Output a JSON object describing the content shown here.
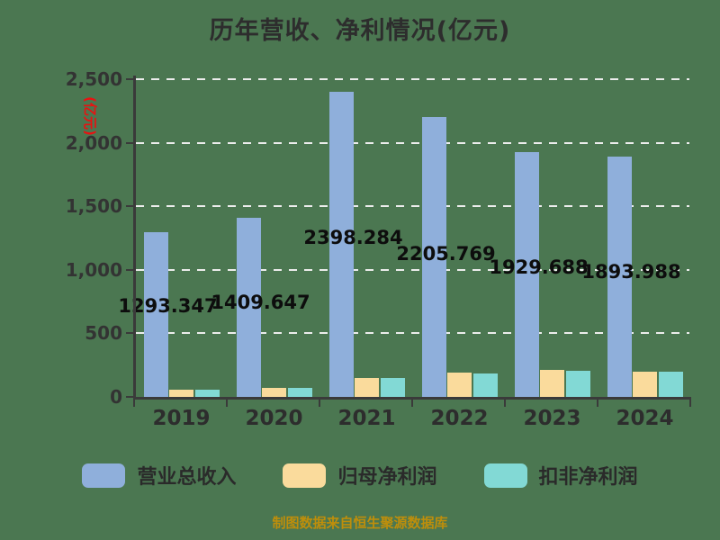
{
  "title": "历年营收、净利情况(亿元)",
  "y_axis": {
    "unit_label": "(亿元)"
  },
  "footer": {
    "source_note": "制图数据来自恒生聚源数据库"
  },
  "colors": {
    "background": "#4B7751",
    "revenue_bar": "#8FAFDB",
    "net_profit_bar": "#FADB9C",
    "deducted_profit_bar": "#82D9D5",
    "gridline": "#ECECEC",
    "axis": "#3a3a3a",
    "unit_label": "#e81212",
    "source_note": "#BE8E0B",
    "value_label": "#0d0d0d"
  },
  "chart_data": {
    "type": "bar",
    "title": "历年营收、净利情况(亿元)",
    "unit": "亿元",
    "categories": [
      "2019",
      "2020",
      "2021",
      "2022",
      "2023",
      "2024"
    ],
    "series": [
      {
        "name": "营业总收入",
        "color": "#8FAFDB",
        "values": [
          1293.347,
          1409.647,
          2398.284,
          2205.769,
          1929.688,
          1893.988
        ]
      },
      {
        "name": "归母净利润",
        "color": "#FADB9C",
        "values": [
          58,
          72,
          152,
          190,
          210,
          200
        ]
      },
      {
        "name": "扣非净利润",
        "color": "#82D9D5",
        "values": [
          56,
          68,
          148,
          185,
          205,
          195
        ]
      }
    ],
    "value_labels": [
      "1293.347",
      "1409.647",
      "2398.284",
      "2205.769",
      "1929.688",
      "1893.988"
    ],
    "y_ticks": [
      "2,500",
      "2,000",
      "1,500",
      "1,000",
      "500",
      "0"
    ],
    "y_tick_values": [
      2500,
      2000,
      1500,
      1000,
      500,
      0
    ],
    "ylim": [
      0,
      2500
    ],
    "grid": "horizontal dashed",
    "legend_position": "bottom"
  }
}
